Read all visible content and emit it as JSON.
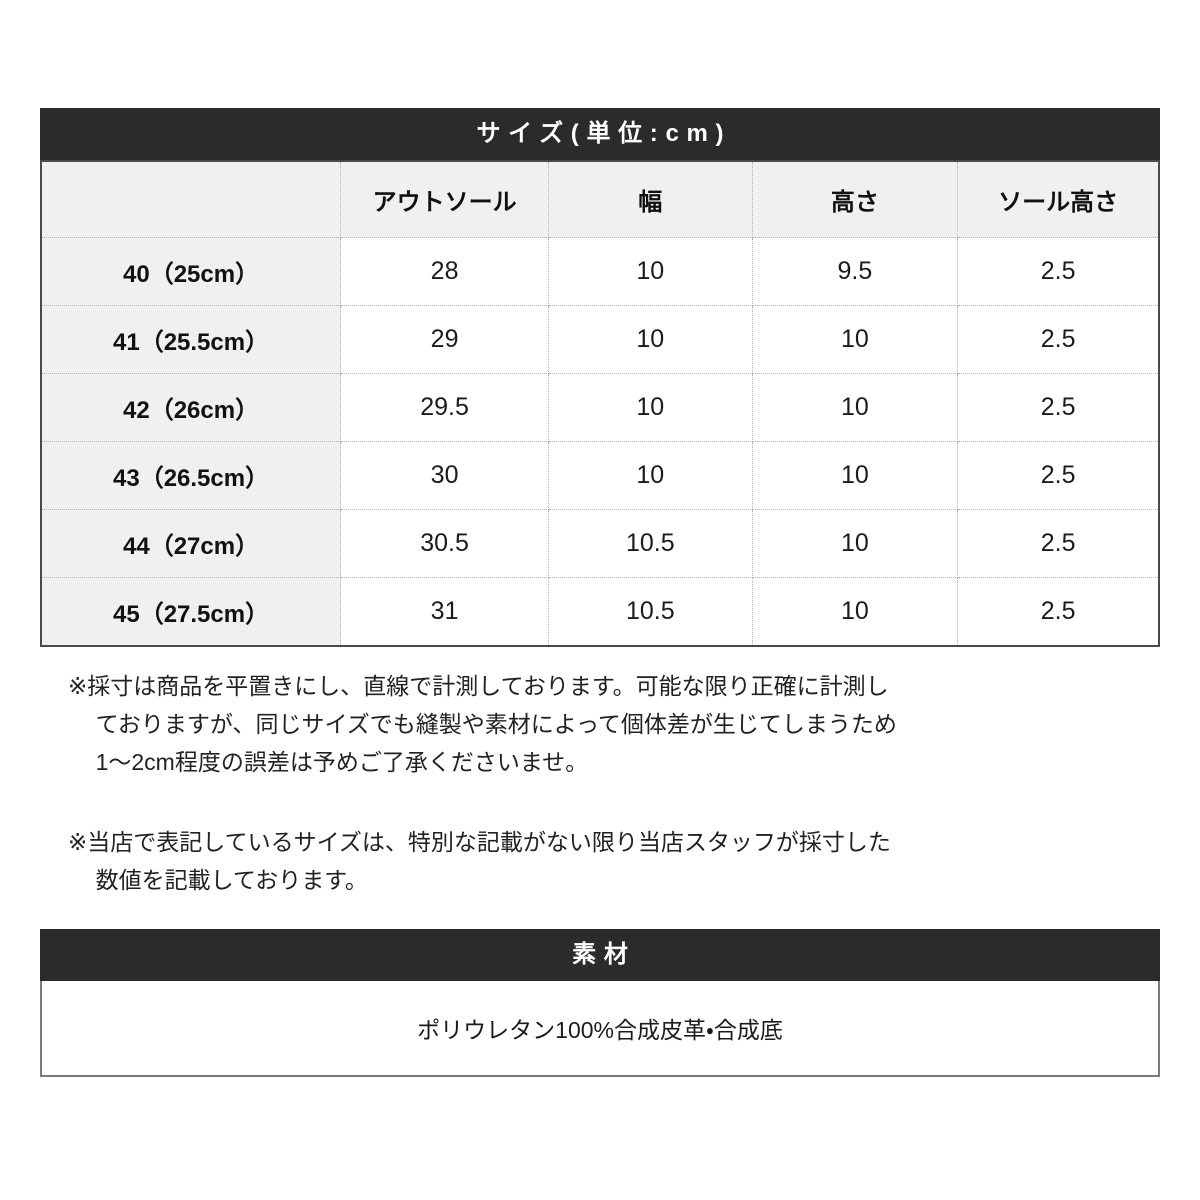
{
  "size_table": {
    "title": "サイズ(単位:cm)",
    "columns": [
      "",
      "アウトソール",
      "幅",
      "高さ",
      "ソール高さ"
    ],
    "rows": [
      {
        "label": "40（25cm）",
        "values": [
          "28",
          "10",
          "9.5",
          "2.5"
        ]
      },
      {
        "label": "41（25.5cm）",
        "values": [
          "29",
          "10",
          "10",
          "2.5"
        ]
      },
      {
        "label": "42（26cm）",
        "values": [
          "29.5",
          "10",
          "10",
          "2.5"
        ]
      },
      {
        "label": "43（26.5cm）",
        "values": [
          "30",
          "10",
          "10",
          "2.5"
        ]
      },
      {
        "label": "44（27cm）",
        "values": [
          "30.5",
          "10.5",
          "10",
          "2.5"
        ]
      },
      {
        "label": "45（27.5cm）",
        "values": [
          "31",
          "10.5",
          "10",
          "2.5"
        ]
      }
    ]
  },
  "notes": [
    {
      "text": "※採寸は商品を平置きにし、直線で計測しております。可能な限り正確に計測し\nておりますが、同じサイズでも縫製や素材によって個体差が生じてしまうため\n1〜2cm程度の誤差は予めご了承くださいませ。"
    },
    {
      "text": "※当店で表記しているサイズは、特別な記載がない限り当店スタッフが採寸した\n数値を記載しております。"
    }
  ],
  "material": {
    "title": "素材",
    "value": "ポリウレタン100%合成皮革・合成底"
  },
  "colors": {
    "section_band_bg": "#2b2b2b",
    "section_band_text": "#ffffff",
    "header_cell_bg": "#f0f0f0",
    "cell_border_dotted": "#b0b0b0",
    "table_outer_border": "#4a4a4a"
  }
}
